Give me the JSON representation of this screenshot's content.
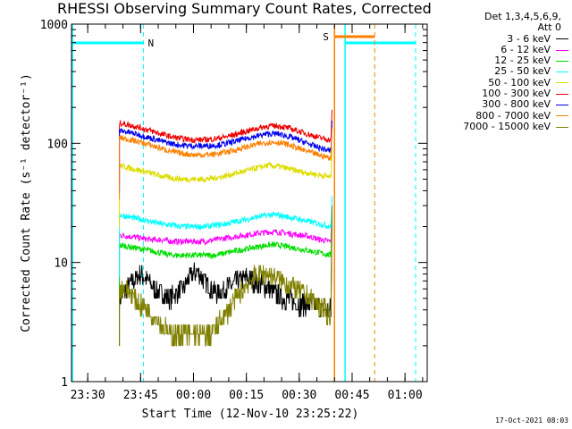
{
  "title": "RHESSI Observing Summary Count Rates, Corrected",
  "timestamp": "17-Oct-2021 08:03",
  "legend": {
    "header_line1": "Det 1,3,4,5,6,9,",
    "header_line2": "Att 0",
    "entries": [
      {
        "label": "3 - 6 keV",
        "color": "#000000"
      },
      {
        "label": "6 - 12 keV",
        "color": "#ff00ff"
      },
      {
        "label": "12 - 25 keV",
        "color": "#00dd00"
      },
      {
        "label": "25 - 50 keV",
        "color": "#00ffff"
      },
      {
        "label": "50 - 100 keV",
        "color": "#dddd00"
      },
      {
        "label": "100 - 300 keV",
        "color": "#ee0000"
      },
      {
        "label": "300 - 800 keV",
        "color": "#0000ee"
      },
      {
        "label": "800 - 7000 keV",
        "color": "#ff8000"
      },
      {
        "label": "7000 - 15000 keV",
        "color": "#808000"
      }
    ]
  },
  "chart_data": {
    "type": "line",
    "title": "RHESSI Observing Summary Count Rates, Corrected",
    "xlabel": "Start Time (12-Nov-10 23:25:22)",
    "ylabel": "Corrected Count Rate (s⁻¹ detector⁻¹)",
    "ylog": true,
    "ylim": [
      1,
      1000
    ],
    "xlim_minutes": [
      -34.6,
      6.3
    ],
    "y_ticks": [
      1,
      10,
      100,
      1000
    ],
    "y_tick_labels": [
      "1",
      "10",
      "100",
      "1000"
    ],
    "x_ticks_minutes": [
      -30,
      -15,
      0,
      15,
      30,
      45,
      60
    ],
    "x_tick_labels": [
      "23:30",
      "23:45",
      "00:00",
      "00:15",
      "00:30",
      "00:45",
      "01:00"
    ],
    "x_tick_minutes_of_day": [
      -30,
      -15,
      0,
      15,
      30,
      45,
      60
    ],
    "annotations": [
      {
        "label": "N",
        "color": "#00ffff"
      },
      {
        "label": "S",
        "color": "#ff8000"
      }
    ],
    "series": [
      {
        "name": "3 - 6 keV",
        "color": "#000000",
        "x": [
          -21,
          -19,
          -17,
          -15,
          -13,
          -11,
          -9,
          -7,
          -5,
          -3,
          -1,
          1,
          3,
          5,
          7,
          9,
          11,
          13,
          15,
          17,
          19,
          21,
          23,
          25,
          27,
          29,
          31,
          33,
          35,
          37,
          39
        ],
        "y": [
          5,
          6,
          7,
          8,
          7,
          6,
          5.5,
          5,
          5.5,
          6,
          7.5,
          8.5,
          7,
          6,
          5.5,
          6,
          6.5,
          7,
          7.5,
          7,
          6.5,
          6,
          5.5,
          5,
          5,
          4.5,
          4.5,
          4.5,
          4.3,
          4,
          4
        ]
      },
      {
        "name": "6 - 12 keV",
        "color": "#ff00ff",
        "x": [
          -21,
          -18,
          -15,
          -12,
          -9,
          -6,
          -3,
          0,
          3,
          6,
          9,
          12,
          15,
          18,
          21,
          24,
          27,
          30,
          33,
          36,
          39
        ],
        "y": [
          17,
          16.5,
          16,
          15.5,
          15.5,
          15,
          15,
          15,
          15,
          15.5,
          16,
          16.5,
          17,
          17.5,
          18,
          18,
          17.5,
          17,
          16.5,
          15.5,
          15
        ]
      },
      {
        "name": "12 - 25 keV",
        "color": "#00dd00",
        "x": [
          -21,
          -18,
          -15,
          -12,
          -9,
          -6,
          -3,
          0,
          3,
          6,
          9,
          12,
          15,
          18,
          21,
          24,
          27,
          30,
          33,
          36,
          39
        ],
        "y": [
          14,
          13.5,
          13,
          12.5,
          12,
          11.5,
          11.5,
          11.5,
          11.5,
          11.5,
          12,
          12.5,
          13,
          13.5,
          14,
          14,
          13.5,
          13,
          12.5,
          12,
          11.5
        ]
      },
      {
        "name": "25 - 50 keV",
        "color": "#00ffff",
        "x": [
          -21,
          -18,
          -15,
          -12,
          -9,
          -6,
          -3,
          0,
          3,
          6,
          9,
          12,
          15,
          18,
          21,
          24,
          27,
          30,
          33,
          36,
          39
        ],
        "y": [
          25,
          24,
          23,
          22,
          21,
          20.5,
          20,
          20,
          20,
          20.5,
          21,
          22,
          23,
          24,
          25,
          25,
          24,
          23,
          22,
          21,
          20
        ]
      },
      {
        "name": "50 - 100 keV",
        "color": "#dddd00",
        "x": [
          -21,
          -18,
          -15,
          -12,
          -9,
          -6,
          -3,
          0,
          3,
          6,
          9,
          12,
          15,
          18,
          21,
          24,
          27,
          30,
          33,
          36,
          39
        ],
        "y": [
          65,
          62,
          59,
          56,
          53,
          51,
          50,
          50,
          50,
          51,
          53,
          56,
          59,
          62,
          65,
          64,
          61,
          58,
          56,
          54,
          52
        ]
      },
      {
        "name": "100 - 300 keV",
        "color": "#ee0000",
        "x": [
          -21,
          -18,
          -15,
          -12,
          -9,
          -6,
          -3,
          0,
          3,
          6,
          9,
          12,
          15,
          18,
          21,
          24,
          27,
          30,
          33,
          36,
          39
        ],
        "y": [
          148,
          142,
          135,
          127,
          119,
          113,
          109,
          107,
          107,
          109,
          113,
          119,
          126,
          133,
          139,
          140,
          134,
          126,
          118,
          111,
          106
        ]
      },
      {
        "name": "300 - 800 keV",
        "color": "#0000ee",
        "x": [
          -21,
          -18,
          -15,
          -12,
          -9,
          -6,
          -3,
          0,
          3,
          6,
          9,
          12,
          15,
          18,
          21,
          24,
          27,
          30,
          33,
          36,
          39
        ],
        "y": [
          128,
          123,
          117,
          110,
          104,
          99,
          96,
          95,
          95,
          96,
          99,
          104,
          110,
          115,
          120,
          120,
          114,
          106,
          98,
          91,
          86
        ]
      },
      {
        "name": "800 - 7000 keV",
        "color": "#ff8000",
        "x": [
          -21,
          -18,
          -15,
          -12,
          -9,
          -6,
          -3,
          0,
          3,
          6,
          9,
          12,
          15,
          18,
          21,
          24,
          27,
          30,
          33,
          36,
          39
        ],
        "y": [
          112,
          107,
          102,
          96,
          90,
          85,
          82,
          80,
          80,
          81,
          84,
          88,
          93,
          98,
          102,
          102,
          97,
          90,
          84,
          79,
          75
        ]
      },
      {
        "name": "7000 - 15000 keV",
        "color": "#808000",
        "x": [
          -21,
          -19,
          -17,
          -15,
          -13,
          -11,
          -9,
          -7,
          -5,
          -3,
          -1,
          1,
          3,
          5,
          7,
          9,
          11,
          13,
          15,
          17,
          19,
          21,
          23,
          25,
          27,
          29,
          31,
          33,
          35,
          37,
          39
        ],
        "y": [
          6,
          6,
          5,
          4.5,
          4,
          3.5,
          3,
          2.5,
          2.5,
          2.5,
          2.5,
          2.5,
          2.5,
          2.5,
          3,
          3.5,
          4.5,
          5.5,
          6.5,
          7.5,
          8,
          8,
          7.5,
          7,
          6.5,
          6,
          5.5,
          5,
          4.5,
          4,
          3.5
        ]
      }
    ]
  }
}
